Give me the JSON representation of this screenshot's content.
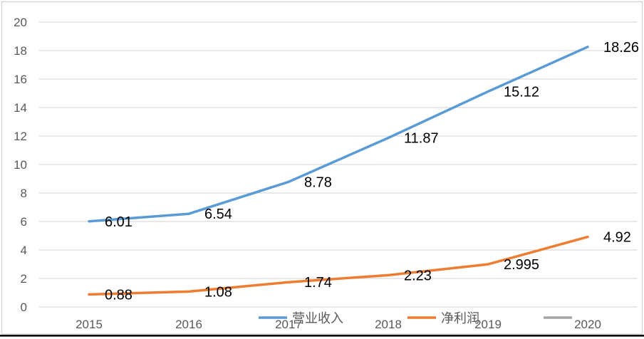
{
  "chart_data": {
    "type": "line",
    "title": "",
    "xlabel": "",
    "ylabel": "",
    "categories": [
      "2015",
      "2016",
      "2017",
      "2018",
      "2019",
      "2020"
    ],
    "series": [
      {
        "name": "营业收入",
        "color": "#5B9BD5",
        "values": [
          6.01,
          6.54,
          8.78,
          11.87,
          15.12,
          18.26
        ],
        "data_labels": [
          "6.01",
          "6.54",
          "8.78",
          "11.87",
          "15.12",
          "18.26"
        ]
      },
      {
        "name": "净利润",
        "color": "#ED7D31",
        "values": [
          0.88,
          1.08,
          1.74,
          2.23,
          2.995,
          4.92
        ],
        "data_labels": [
          "0.88",
          "1.08",
          "1.74",
          "2.23",
          "2.995",
          "4.92"
        ]
      },
      {
        "name": "",
        "color": "#A5A5A5",
        "values": [],
        "data_labels": []
      }
    ],
    "ylim": [
      0,
      20
    ],
    "ytick_step": 2,
    "ytick_labels": [
      "0",
      "2",
      "4",
      "6",
      "8",
      "10",
      "12",
      "14",
      "16",
      "18",
      "20"
    ],
    "grid": true,
    "legend_position": "bottom",
    "colors": {
      "gridline": "#D9D9D9",
      "axis_label": "#595959",
      "data_label": "#000000",
      "chart_border": "#D6D6D6",
      "bottom_rule": "#000000",
      "background": "#FFFFFF"
    }
  }
}
